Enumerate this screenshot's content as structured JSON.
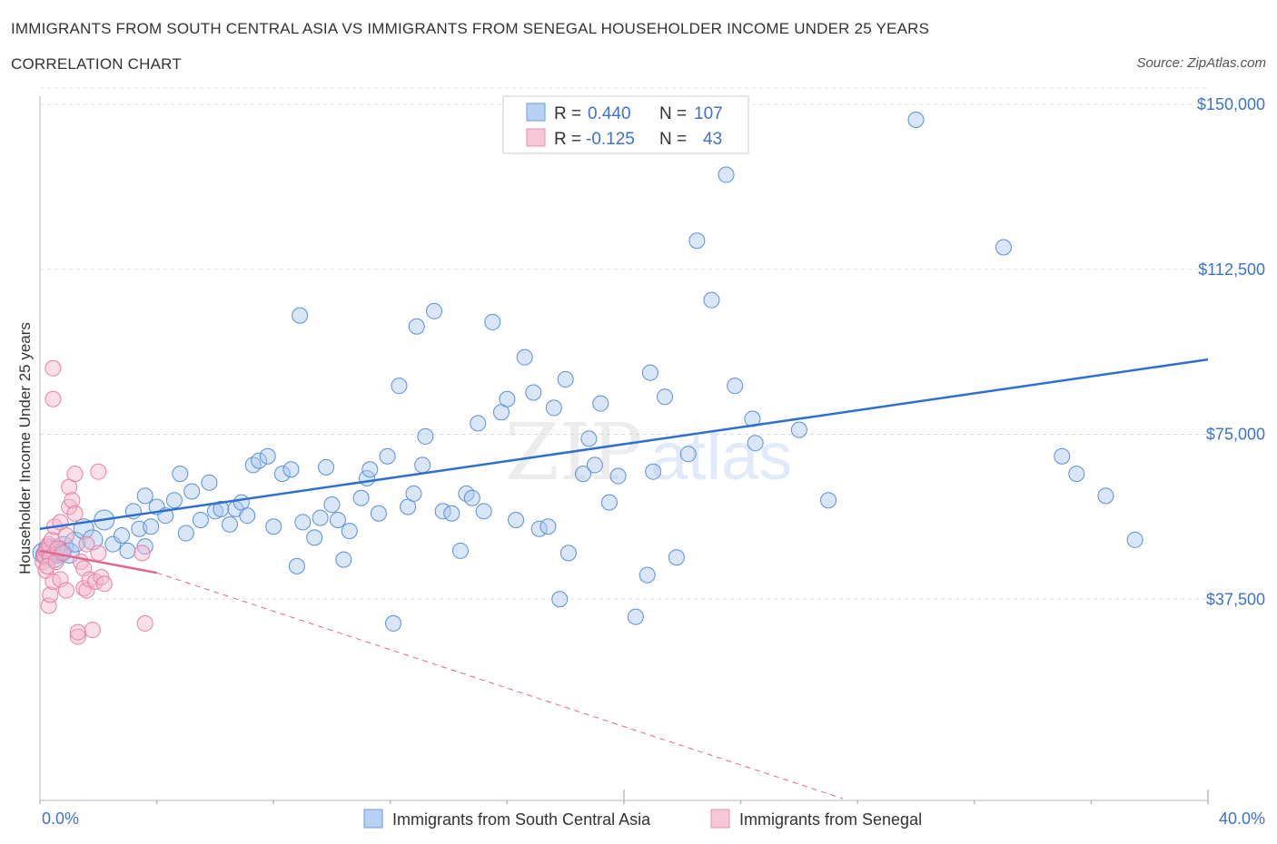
{
  "header": {
    "title": "IMMIGRANTS FROM SOUTH CENTRAL ASIA VS IMMIGRANTS FROM SENEGAL HOUSEHOLDER INCOME UNDER 25 YEARS",
    "subtitle": "CORRELATION CHART",
    "source": "Source: ZipAtlas.com"
  },
  "colors": {
    "blue_fill": "#a9c8f0",
    "blue_stroke": "#5b8fd6",
    "blue_line": "#2e6fd0",
    "pink_fill": "#f5b8cc",
    "pink_stroke": "#e680a5",
    "pink_line": "#e0668f",
    "grid": "#dddddd",
    "axis_text": "#3d73c7"
  },
  "legend": {
    "blue": {
      "r_label": "R =",
      "r_value": "0.440",
      "n_label": "N =",
      "n_value": "107"
    },
    "pink": {
      "r_label": "R =",
      "r_value": "-0.125",
      "n_label": "N =",
      "n_value": "43"
    }
  },
  "watermark": "ZIPatlas",
  "chart_data": {
    "type": "scatter",
    "title": "IMMIGRANTS FROM SOUTH CENTRAL ASIA VS IMMIGRANTS FROM SENEGAL HOUSEHOLDER INCOME UNDER 25 YEARS",
    "xlabel": "",
    "ylabel": "Householder Income Under 25 years",
    "xlim": [
      0,
      40
    ],
    "ylim": [
      0,
      150000
    ],
    "x_tick_labels": [
      "0.0%",
      "40.0%"
    ],
    "y_ticks": [
      37500,
      75000,
      112500,
      150000
    ],
    "y_tick_labels": [
      "$37,500",
      "$75,000",
      "$112,500",
      "$150,000"
    ],
    "grid": true,
    "legend_position": "top-center",
    "series": [
      {
        "name": "Immigrants from South Central Asia",
        "color": "#a9c8f0",
        "trend": {
          "x": [
            0,
            40
          ],
          "y": [
            53500,
            92000
          ]
        },
        "points": [
          [
            0.1,
            48000
          ],
          [
            0.2,
            47500
          ],
          [
            0.3,
            49000
          ],
          [
            0.4,
            48500
          ],
          [
            0.5,
            47000
          ],
          [
            0.6,
            48000
          ],
          [
            0.7,
            48500
          ],
          [
            0.8,
            49500
          ],
          [
            1.0,
            48000
          ],
          [
            1.2,
            50500
          ],
          [
            1.5,
            53500
          ],
          [
            1.8,
            51000
          ],
          [
            2.2,
            55500
          ],
          [
            2.5,
            50000
          ],
          [
            2.8,
            52000
          ],
          [
            3.0,
            48500
          ],
          [
            3.2,
            57500
          ],
          [
            3.4,
            53500
          ],
          [
            3.6,
            49500
          ],
          [
            3.8,
            54000
          ],
          [
            3.6,
            61000
          ],
          [
            4.0,
            58500
          ],
          [
            4.3,
            56500
          ],
          [
            4.6,
            60000
          ],
          [
            4.8,
            66000
          ],
          [
            5.0,
            52500
          ],
          [
            5.2,
            62000
          ],
          [
            5.5,
            55500
          ],
          [
            5.8,
            64000
          ],
          [
            6.0,
            57500
          ],
          [
            6.2,
            58000
          ],
          [
            6.5,
            54500
          ],
          [
            6.7,
            58000
          ],
          [
            6.9,
            59500
          ],
          [
            7.1,
            56500
          ],
          [
            7.3,
            68000
          ],
          [
            7.5,
            69000
          ],
          [
            7.8,
            70000
          ],
          [
            8.0,
            54000
          ],
          [
            8.3,
            66000
          ],
          [
            8.6,
            67000
          ],
          [
            8.8,
            45000
          ],
          [
            8.9,
            102000
          ],
          [
            9.0,
            55000
          ],
          [
            9.4,
            51500
          ],
          [
            9.6,
            56000
          ],
          [
            9.8,
            67500
          ],
          [
            10.0,
            59000
          ],
          [
            10.2,
            55500
          ],
          [
            10.4,
            46500
          ],
          [
            10.6,
            53000
          ],
          [
            11.0,
            60500
          ],
          [
            11.2,
            65000
          ],
          [
            11.3,
            67000
          ],
          [
            11.6,
            57000
          ],
          [
            11.9,
            70000
          ],
          [
            12.1,
            32000
          ],
          [
            12.3,
            86000
          ],
          [
            12.6,
            58500
          ],
          [
            12.8,
            61500
          ],
          [
            12.9,
            99500
          ],
          [
            13.1,
            68000
          ],
          [
            13.2,
            74500
          ],
          [
            13.5,
            103000
          ],
          [
            13.8,
            57500
          ],
          [
            14.1,
            57000
          ],
          [
            14.4,
            48500
          ],
          [
            14.6,
            61500
          ],
          [
            14.8,
            60500
          ],
          [
            15.0,
            77500
          ],
          [
            15.2,
            57500
          ],
          [
            15.5,
            100500
          ],
          [
            15.8,
            80000
          ],
          [
            16.0,
            83000
          ],
          [
            16.3,
            55500
          ],
          [
            16.6,
            92500
          ],
          [
            16.9,
            84500
          ],
          [
            17.1,
            53500
          ],
          [
            17.4,
            54000
          ],
          [
            17.6,
            81000
          ],
          [
            17.8,
            37500
          ],
          [
            18.0,
            87500
          ],
          [
            18.1,
            48000
          ],
          [
            18.6,
            66000
          ],
          [
            18.8,
            74000
          ],
          [
            19.0,
            68000
          ],
          [
            19.2,
            82000
          ],
          [
            19.5,
            59500
          ],
          [
            19.8,
            65500
          ],
          [
            20.4,
            33500
          ],
          [
            20.8,
            43000
          ],
          [
            20.9,
            89000
          ],
          [
            21.0,
            66500
          ],
          [
            21.4,
            83500
          ],
          [
            21.8,
            47000
          ],
          [
            22.2,
            70500
          ],
          [
            22.5,
            119000
          ],
          [
            23.0,
            105500
          ],
          [
            23.5,
            134000
          ],
          [
            23.8,
            86000
          ],
          [
            24.4,
            78500
          ],
          [
            24.5,
            73000
          ],
          [
            26.0,
            76000
          ],
          [
            27.0,
            60000
          ],
          [
            30.0,
            146500
          ],
          [
            33.0,
            117500
          ],
          [
            35.0,
            70000
          ],
          [
            35.5,
            66000
          ],
          [
            36.5,
            61000
          ],
          [
            37.5,
            51000
          ]
        ]
      },
      {
        "name": "Immigrants from Senegal",
        "color": "#f5b8cc",
        "trend": {
          "x": [
            0,
            4
          ],
          "y": [
            48500,
            43500
          ],
          "dashed_extension": {
            "x": [
              4,
              27.5
            ],
            "y": [
              43500,
              0
            ]
          }
        },
        "points": [
          [
            0.1,
            46000
          ],
          [
            0.15,
            47500
          ],
          [
            0.2,
            48500
          ],
          [
            0.25,
            49000
          ],
          [
            0.3,
            50000
          ],
          [
            0.35,
            47000
          ],
          [
            0.2,
            44000
          ],
          [
            0.25,
            45000
          ],
          [
            0.3,
            36000
          ],
          [
            0.35,
            38500
          ],
          [
            0.4,
            51000
          ],
          [
            0.45,
            41500
          ],
          [
            0.5,
            54000
          ],
          [
            0.55,
            46000
          ],
          [
            0.6,
            49000
          ],
          [
            0.7,
            55000
          ],
          [
            0.7,
            42000
          ],
          [
            0.8,
            48000
          ],
          [
            0.9,
            52000
          ],
          [
            0.9,
            39500
          ],
          [
            1.0,
            58500
          ],
          [
            1.0,
            63000
          ],
          [
            1.1,
            60000
          ],
          [
            1.2,
            66000
          ],
          [
            1.2,
            57000
          ],
          [
            1.3,
            29000
          ],
          [
            1.3,
            30000
          ],
          [
            1.4,
            46000
          ],
          [
            1.5,
            40000
          ],
          [
            1.5,
            44500
          ],
          [
            1.6,
            50000
          ],
          [
            1.6,
            39500
          ],
          [
            1.7,
            42000
          ],
          [
            1.8,
            30500
          ],
          [
            1.9,
            41500
          ],
          [
            2.0,
            48000
          ],
          [
            2.1,
            42500
          ],
          [
            2.2,
            41000
          ],
          [
            0.45,
            83000
          ],
          [
            0.45,
            90000
          ],
          [
            3.5,
            48000
          ],
          [
            3.6,
            32000
          ],
          [
            2.0,
            66500
          ]
        ]
      }
    ]
  },
  "bottom_legend": {
    "blue_label": "Immigrants from South Central Asia",
    "pink_label": "Immigrants from Senegal"
  }
}
